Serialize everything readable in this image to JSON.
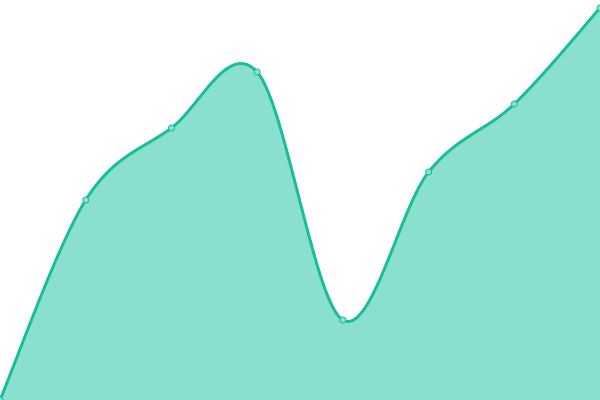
{
  "chart_data": {
    "type": "area",
    "x": [
      0,
      1,
      2,
      3,
      4,
      5,
      6,
      7
    ],
    "values": [
      0,
      50,
      68,
      82,
      20,
      57,
      74,
      98
    ],
    "ylim": [
      0,
      100
    ],
    "grid": false,
    "axes_visible": false,
    "smooth": true,
    "markers": true,
    "colors": {
      "line": "#1abc9c",
      "fill": "#8ae0cf",
      "marker_fill": "#8ae0cf"
    }
  }
}
